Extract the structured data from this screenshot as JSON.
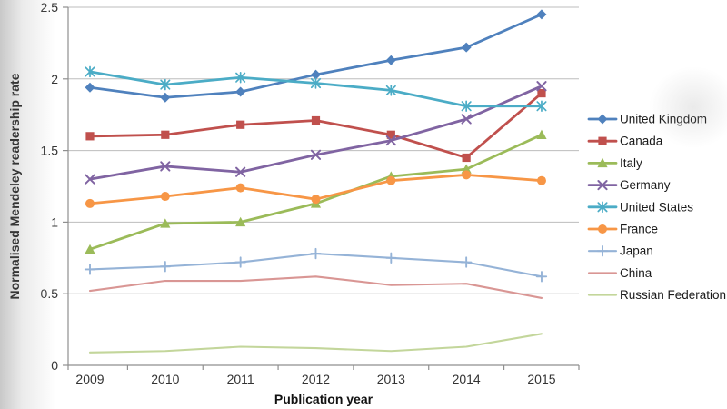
{
  "chart_data": {
    "type": "line",
    "title": "",
    "xlabel": "Publication year",
    "ylabel": "Normalised Mendeley readership rate",
    "categories": [
      "2009",
      "2010",
      "2011",
      "2012",
      "2013",
      "2014",
      "2015"
    ],
    "ylim": [
      0,
      2.5
    ],
    "ytick_step": 0.5,
    "yticks": [
      "0",
      "0.5",
      "1",
      "1.5",
      "2",
      "2.5"
    ],
    "grid": "horizontal",
    "legend_position": "right",
    "series": [
      {
        "name": "United Kingdom",
        "color": "#4F81BD",
        "marker": "diamond",
        "values": [
          1.94,
          1.87,
          1.91,
          2.03,
          2.13,
          2.22,
          2.45
        ]
      },
      {
        "name": "Canada",
        "color": "#C0504D",
        "marker": "square",
        "values": [
          1.6,
          1.61,
          1.68,
          1.71,
          1.61,
          1.45,
          1.9
        ]
      },
      {
        "name": "Italy",
        "color": "#9BBB59",
        "marker": "triangle",
        "values": [
          0.81,
          0.99,
          1.0,
          1.13,
          1.32,
          1.37,
          1.61
        ]
      },
      {
        "name": "Germany",
        "color": "#8064A2",
        "marker": "x",
        "values": [
          1.3,
          1.39,
          1.35,
          1.47,
          1.57,
          1.72,
          1.95
        ]
      },
      {
        "name": "United States",
        "color": "#4BACC6",
        "marker": "asterisk",
        "values": [
          2.05,
          1.96,
          2.01,
          1.97,
          1.92,
          1.81,
          1.81
        ]
      },
      {
        "name": "France",
        "color": "#F79646",
        "marker": "circle",
        "values": [
          1.13,
          1.18,
          1.24,
          1.16,
          1.29,
          1.33,
          1.29
        ]
      },
      {
        "name": "Japan",
        "color": "#95B3D7",
        "marker": "plus",
        "values": [
          0.67,
          0.69,
          0.72,
          0.78,
          0.75,
          0.72,
          0.62
        ]
      },
      {
        "name": "China",
        "color": "#D99694",
        "marker": "none",
        "values": [
          0.52,
          0.59,
          0.59,
          0.62,
          0.56,
          0.57,
          0.47
        ]
      },
      {
        "name": "Russian Federation",
        "color": "#C3D69B",
        "marker": "none",
        "values": [
          0.09,
          0.1,
          0.13,
          0.12,
          0.1,
          0.13,
          0.22
        ]
      }
    ],
    "style_colors": {
      "gridline": "#bdbdbd",
      "axis_line": "#8f8f8f"
    }
  }
}
